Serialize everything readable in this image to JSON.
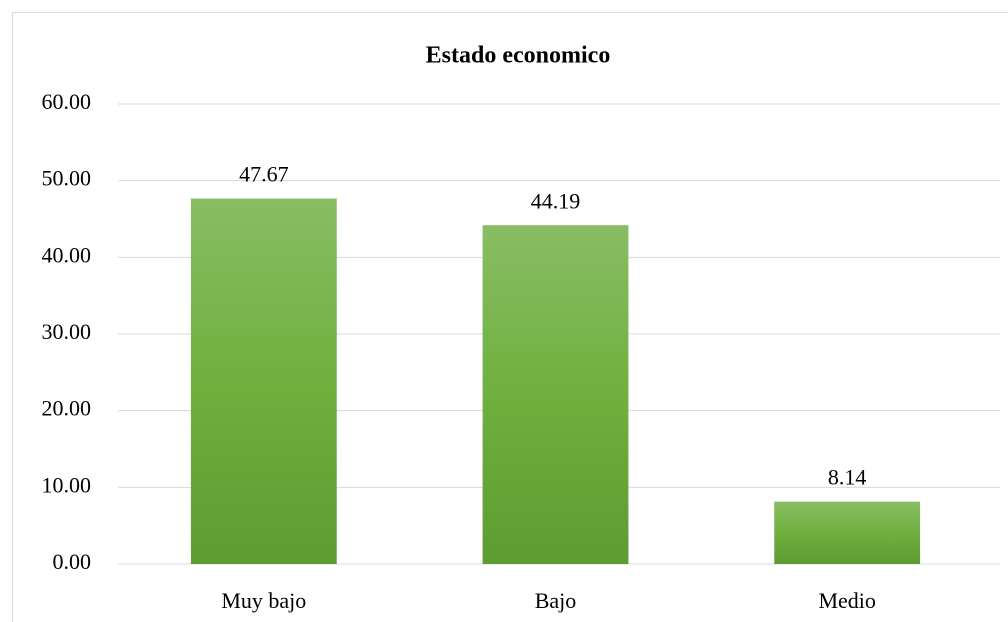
{
  "chart_data": {
    "type": "bar",
    "title": "Estado economico",
    "categories": [
      "Muy bajo",
      "Bajo",
      "Medio"
    ],
    "values": [
      47.67,
      44.19,
      8.14
    ],
    "color": "#70ad47",
    "ylim": [
      0,
      60
    ],
    "yticks": [
      {
        "value": 0,
        "label": "0.00"
      },
      {
        "value": 10,
        "label": "10.00"
      },
      {
        "value": 20,
        "label": "20.00"
      },
      {
        "value": 30,
        "label": "30.00"
      },
      {
        "value": 40,
        "label": "40.00"
      },
      {
        "value": 50,
        "label": "50.00"
      },
      {
        "value": 60,
        "label": "60.00"
      }
    ],
    "grid": true
  }
}
